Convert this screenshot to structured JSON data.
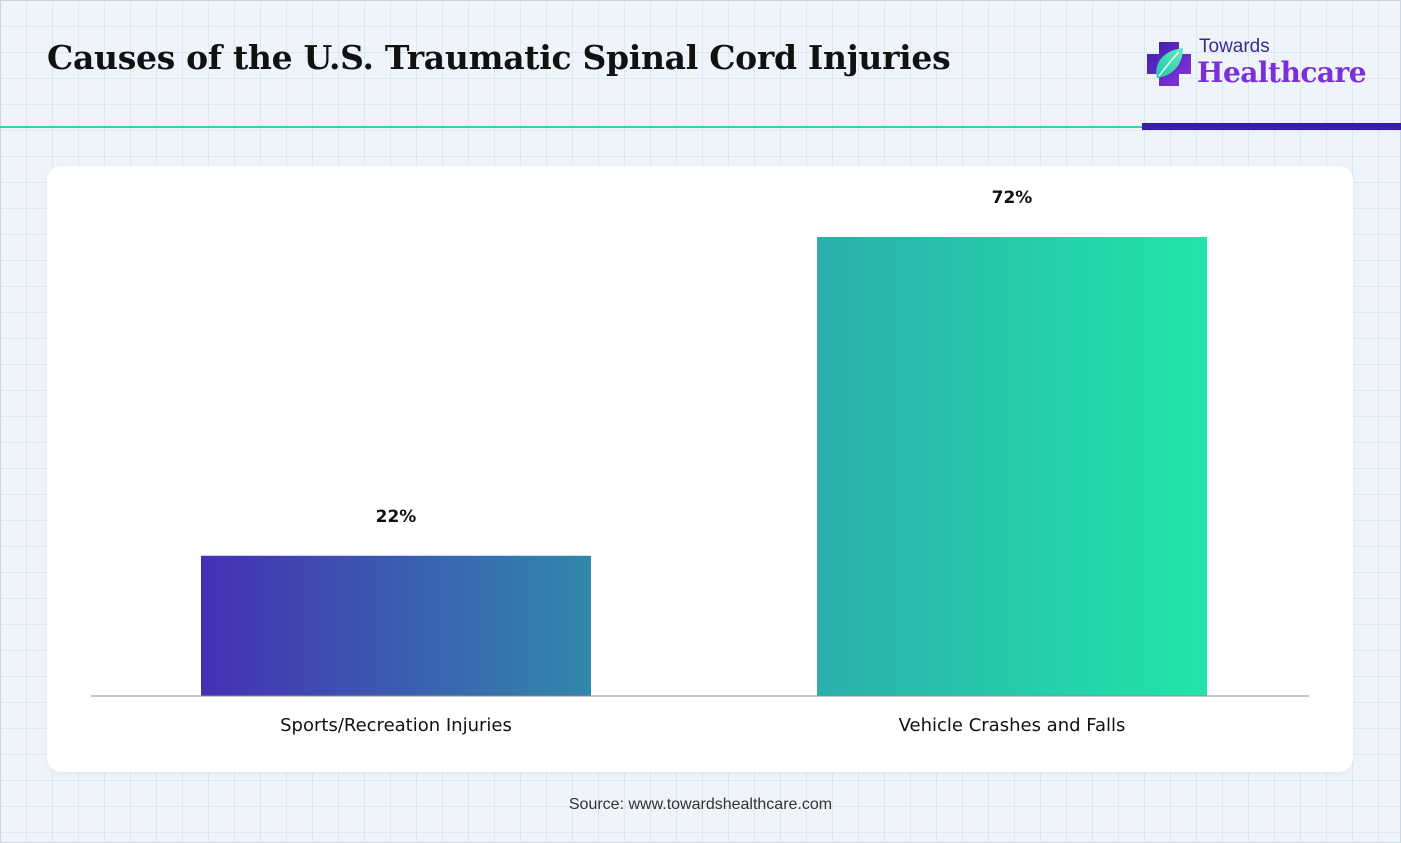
{
  "header": {
    "title": "Causes of the U.S. Traumatic Spinal Cord Injuries",
    "logo_top": "Towards",
    "logo_bottom": "Healthcare"
  },
  "colors": {
    "accent_teal": "#2fd6a9",
    "accent_purple": "#3a1ea8",
    "bar1_start": "#4530b4",
    "bar1_end": "#3188ab",
    "bar2_start": "#2aafab",
    "bar2_end": "#22e5aa"
  },
  "chart_data": {
    "type": "bar",
    "categories": [
      "Sports/Recreation Injuries",
      "Vehicle Crashes and Falls"
    ],
    "values": [
      22,
      72
    ],
    "value_labels": [
      "22%",
      "72%"
    ],
    "ylim": [
      0,
      80
    ],
    "grid": false
  },
  "footer": {
    "source": "Source: www.towardshealthcare.com"
  }
}
